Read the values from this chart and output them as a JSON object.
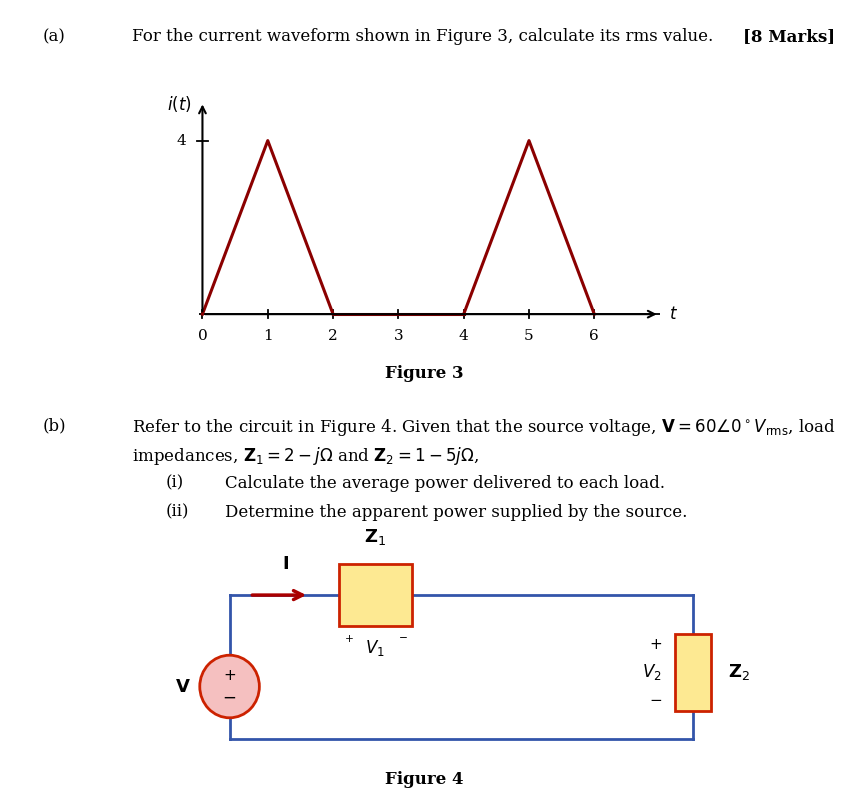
{
  "page_bg": "#ffffff",
  "part_a_label": "(a)",
  "part_a_text": "For the current waveform shown in Figure 3, calculate its rms value.",
  "part_a_marks": "[8 Marks]",
  "figure3_caption": "Figure 3",
  "waveform_color": "#8b0000",
  "axis_ylabel": "$i(t)$",
  "axis_xlabel": "$t$",
  "ytick_val": 4,
  "xtick_vals": [
    0,
    1,
    2,
    3,
    4,
    5,
    6
  ],
  "part_b_label": "(b)",
  "part_b_line1": "Refer to the circuit in Figure 4. Given that the source voltage, $\\mathbf{V} = 60\\angle 0^\\circ V_{\\mathrm{rms}}$, load",
  "part_b_line2": "impedances, $\\mathbf{Z}_1 = 2 - j\\Omega$ and $\\mathbf{Z}_2 = 1 - 5j\\Omega$,",
  "part_b_i_label": "(i)",
  "part_b_i_text": "Calculate the average power delivered to each load.",
  "part_b_ii_label": "(ii)",
  "part_b_ii_text": "Determine the apparent power supplied by the source.",
  "figure4_caption": "Figure 4",
  "circuit_wire_color": "#3355aa",
  "z1_fill": "#fde992",
  "z1_border": "#cc2200",
  "z2_fill": "#fde992",
  "z2_border": "#cc2200",
  "source_fill": "#f5c0c0",
  "source_border": "#cc2200",
  "arrow_color": "#aa0000"
}
